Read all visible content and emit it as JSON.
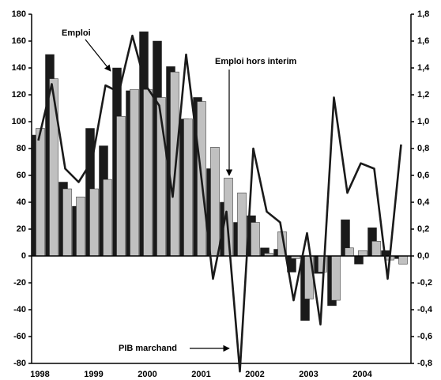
{
  "chart_data": {
    "type": "bar",
    "categories": [
      "1998",
      null,
      null,
      null,
      "1999",
      null,
      null,
      null,
      "2000",
      null,
      null,
      null,
      "2001",
      null,
      null,
      null,
      "2002",
      null,
      null,
      null,
      "2003",
      null,
      null,
      null,
      "2004",
      null,
      null,
      null
    ],
    "series": [
      {
        "name": "Emploi",
        "color": "#1a1a1a",
        "values": [
          90,
          150,
          55,
          37,
          95,
          82,
          140,
          123,
          167,
          160,
          141,
          102,
          118,
          65,
          40,
          25,
          30,
          6,
          5,
          -12,
          -48,
          -13,
          -37,
          27,
          -6,
          21,
          4,
          -2
        ]
      },
      {
        "name": "Emploi hors interim",
        "color": "#c0c0c0",
        "values": [
          95,
          132,
          50,
          44,
          50,
          57,
          104,
          124,
          124,
          118,
          137,
          102,
          115,
          81,
          58,
          47,
          25,
          2,
          18,
          -2,
          -32,
          -12,
          -33,
          6,
          4,
          11,
          -3,
          -6
        ]
      },
      {
        "name": "PIB marchand",
        "type": "line",
        "axis": "y2",
        "color": "#1a1a1a",
        "values": [
          0.86,
          1.28,
          0.65,
          0.55,
          0.71,
          1.27,
          1.22,
          1.64,
          1.27,
          1.12,
          0.44,
          1.5,
          0.7,
          -0.17,
          0.33,
          -0.86,
          0.8,
          0.33,
          0.25,
          -0.33,
          0.17,
          -0.51,
          1.18,
          0.47,
          0.69,
          0.65,
          -0.17,
          0.83
        ]
      }
    ],
    "ylim": [
      -80,
      180
    ],
    "yticks": [
      -80,
      -60,
      -40,
      -20,
      0,
      20,
      40,
      60,
      80,
      100,
      120,
      140,
      160,
      180
    ],
    "y2lim": [
      -0.8,
      1.8
    ],
    "y2ticks": [
      {
        "value": -0.8,
        "label": "-0,8"
      },
      {
        "value": -0.6,
        "label": "-0,6"
      },
      {
        "value": -0.4,
        "label": "-0,4"
      },
      {
        "value": -0.2,
        "label": "-0,2"
      },
      {
        "value": 0,
        "label": "0,0"
      },
      {
        "value": 0.2,
        "label": "0,2"
      },
      {
        "value": 0.4,
        "label": "0,4"
      },
      {
        "value": 0.6,
        "label": "0,6"
      },
      {
        "value": 0.8,
        "label": "0,8"
      },
      {
        "value": 1,
        "label": "1,0"
      },
      {
        "value": 1.2,
        "label": "1,2"
      },
      {
        "value": 1.4,
        "label": "1,4"
      },
      {
        "value": 1.6,
        "label": "1,6"
      },
      {
        "value": 1.8,
        "label": "1,8"
      }
    ]
  }
}
